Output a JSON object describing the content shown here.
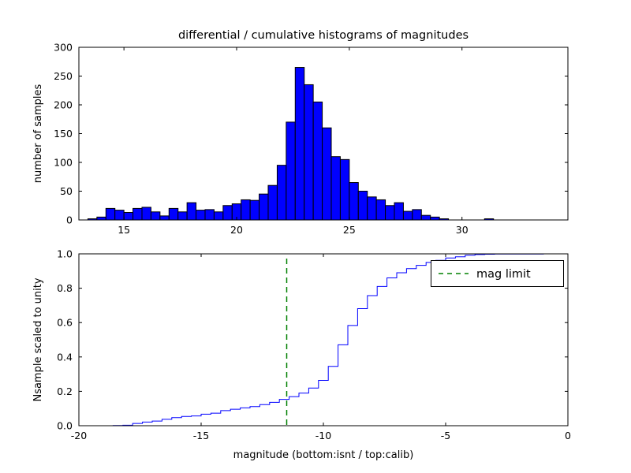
{
  "chart_data": [
    {
      "type": "bar",
      "subplot": "top",
      "title": "differential / cumulative histograms of magnitudes",
      "ylabel": "number of samples",
      "xlabel": "",
      "bar_color": "#0000ff",
      "bar_edge_color": "#000000",
      "bin_start": 13.4,
      "bin_width": 0.4,
      "counts": [
        2,
        5,
        20,
        17,
        13,
        20,
        22,
        14,
        7,
        20,
        14,
        30,
        17,
        18,
        14,
        25,
        28,
        35,
        34,
        45,
        60,
        95,
        170,
        265,
        235,
        205,
        160,
        110,
        105,
        65,
        50,
        40,
        35,
        25,
        30,
        15,
        18,
        8,
        5,
        2,
        0,
        0,
        0,
        0,
        2
      ],
      "xlim": [
        13,
        34.7
      ],
      "ylim": [
        0,
        300
      ],
      "xticks": [
        15,
        20,
        25,
        30
      ],
      "xtick_labels": [
        "15",
        "20",
        "25",
        "30"
      ],
      "yticks": [
        0,
        50,
        100,
        150,
        200,
        250,
        300
      ],
      "ytick_labels": [
        "0",
        "50",
        "100",
        "150",
        "200",
        "250",
        "300"
      ],
      "grid": false
    },
    {
      "type": "line",
      "subplot": "bottom",
      "line_style": "step-cumulative",
      "line_color": "#0000ff",
      "ylabel": "Nsample scaled to unity",
      "xlabel": "magnitude (bottom:isnt / top:calib)",
      "bin_start": -18.6,
      "bin_width": 0.4,
      "cumulative_fraction": [
        0.001,
        0.003,
        0.013,
        0.021,
        0.027,
        0.037,
        0.047,
        0.054,
        0.057,
        0.067,
        0.073,
        0.088,
        0.096,
        0.104,
        0.111,
        0.123,
        0.136,
        0.153,
        0.169,
        0.19,
        0.219,
        0.264,
        0.345,
        0.471,
        0.583,
        0.681,
        0.757,
        0.81,
        0.86,
        0.89,
        0.914,
        0.933,
        0.95,
        0.962,
        0.976,
        0.983,
        0.992,
        0.996,
        0.998,
        0.999,
        0.999,
        0.999,
        0.999,
        0.999,
        1.0
      ],
      "xlim": [
        -20,
        0
      ],
      "ylim": [
        0,
        1
      ],
      "xticks": [
        -20,
        -15,
        -10,
        -5,
        0
      ],
      "xtick_labels": [
        "-20",
        "-15",
        "-10",
        "-5",
        "0"
      ],
      "yticks": [
        0,
        0.2,
        0.4,
        0.6,
        0.8,
        1.0
      ],
      "ytick_labels": [
        "0.0",
        "0.2",
        "0.4",
        "0.6",
        "0.8",
        "1.0"
      ],
      "grid": false,
      "legend": {
        "label": "mag limit",
        "position": "upper right"
      },
      "mag_limit": {
        "x": -11.5,
        "color": "#008000",
        "line_style": "dashed"
      }
    }
  ]
}
